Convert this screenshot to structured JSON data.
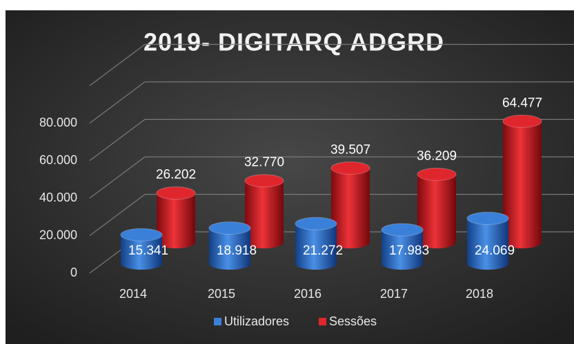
{
  "chart_data": {
    "type": "bar3d",
    "title": "2019- DIGITARQ ADGRD",
    "categories": [
      "2014",
      "2015",
      "2016",
      "2017",
      "2018"
    ],
    "series": [
      {
        "name": "Utilizadores",
        "color": "#3a80d8",
        "values": [
          15341,
          18918,
          21272,
          17983,
          24069
        ],
        "value_labels": [
          "15.341",
          "18.918",
          "21.272",
          "17.983",
          "24.069"
        ]
      },
      {
        "name": "Sessões",
        "color": "#e0262d",
        "values": [
          26202,
          32770,
          39507,
          36209,
          64477
        ],
        "value_labels": [
          "26.202",
          "32.770",
          "39.507",
          "36.209",
          "64.477"
        ]
      }
    ],
    "ylim": [
      0,
      100000
    ],
    "yticks": [
      0,
      {
        "value": 20000,
        "label": "20.000"
      },
      {
        "value": 40000,
        "label": "40.000"
      },
      {
        "value": 60000,
        "label": "60.000"
      },
      {
        "value": 80000,
        "label": "80.000"
      }
    ],
    "grid": true,
    "legend": "bottom"
  }
}
